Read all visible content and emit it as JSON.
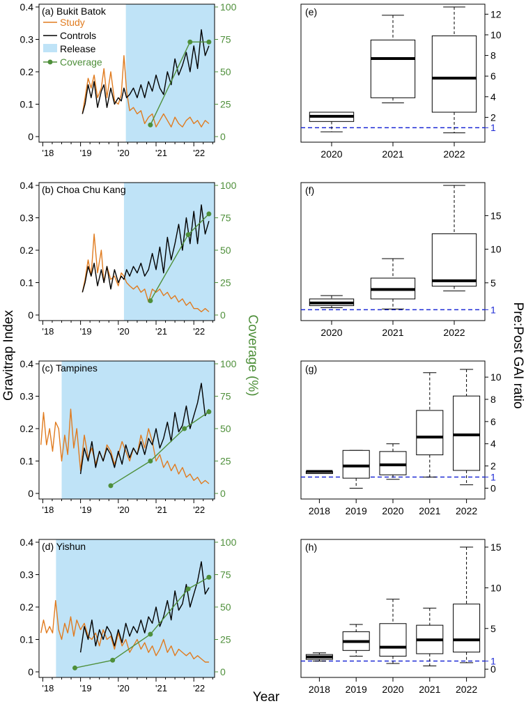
{
  "figure": {
    "y_left_label": "Gravitrap Index",
    "y_right_label": "Coverage (%)",
    "x_label": "Year",
    "box_y_label": "Pre:Post GAI ratio",
    "legend": {
      "study": "Study",
      "controls": "Controls",
      "release": "Release",
      "coverage": "Coverage"
    },
    "colors": {
      "study": "#e07b1f",
      "controls": "#000000",
      "release": "#bfe3f7",
      "coverage": "#4e8f3a",
      "ref": "#1f2bd6"
    }
  },
  "chart_data": [
    {
      "type": "line",
      "id": "a",
      "title": "(a) Bukit Batok",
      "x_ticks": [
        "'18",
        "'19",
        "'20",
        "'21",
        "'22"
      ],
      "x_tick_values": [
        2018,
        2019,
        2020,
        2021,
        2022
      ],
      "xlim": [
        2017.9,
        2022.55
      ],
      "ylim": [
        0,
        0.4
      ],
      "y_ticks": [
        "0",
        "0.1",
        "0.2",
        "0.3",
        "0.4"
      ],
      "y_tick_values": [
        0,
        0.1,
        0.2,
        0.3,
        0.4
      ],
      "y2lim": [
        0,
        100
      ],
      "y2_ticks": [
        "0",
        "25",
        "50",
        "75",
        "100"
      ],
      "y2_tick_values": [
        0,
        25,
        50,
        75,
        100
      ],
      "release_start": 2020.2,
      "study": {
        "x": [
          2019.05,
          2019.12,
          2019.2,
          2019.28,
          2019.36,
          2019.45,
          2019.55,
          2019.62,
          2019.7,
          2019.8,
          2019.9,
          2020.0,
          2020.08,
          2020.15,
          2020.22,
          2020.3,
          2020.4,
          2020.5,
          2020.6,
          2020.7,
          2020.8,
          2020.9,
          2021.0,
          2021.1,
          2021.2,
          2021.3,
          2021.4,
          2021.5,
          2021.6,
          2021.7,
          2021.8,
          2021.9,
          2022.0,
          2022.1,
          2022.2,
          2022.3,
          2022.4
        ],
        "y": [
          0.07,
          0.12,
          0.18,
          0.15,
          0.19,
          0.12,
          0.15,
          0.21,
          0.12,
          0.2,
          0.11,
          0.1,
          0.13,
          0.25,
          0.14,
          0.08,
          0.09,
          0.07,
          0.08,
          0.04,
          0.06,
          0.07,
          0.03,
          0.05,
          0.07,
          0.05,
          0.03,
          0.06,
          0.04,
          0.03,
          0.05,
          0.06,
          0.04,
          0.05,
          0.03,
          0.05,
          0.04
        ]
      },
      "controls": {
        "x": [
          2019.05,
          2019.12,
          2019.2,
          2019.28,
          2019.36,
          2019.45,
          2019.55,
          2019.62,
          2019.7,
          2019.8,
          2019.9,
          2020.0,
          2020.08,
          2020.15,
          2020.22,
          2020.3,
          2020.4,
          2020.5,
          2020.6,
          2020.7,
          2020.8,
          2020.9,
          2021.0,
          2021.1,
          2021.2,
          2021.3,
          2021.4,
          2021.5,
          2021.6,
          2021.7,
          2021.8,
          2021.9,
          2022.0,
          2022.1,
          2022.2,
          2022.3,
          2022.4
        ],
        "y": [
          0.07,
          0.1,
          0.16,
          0.12,
          0.17,
          0.09,
          0.14,
          0.16,
          0.09,
          0.15,
          0.1,
          0.12,
          0.11,
          0.15,
          0.12,
          0.13,
          0.15,
          0.12,
          0.16,
          0.12,
          0.17,
          0.14,
          0.19,
          0.15,
          0.13,
          0.2,
          0.16,
          0.24,
          0.19,
          0.22,
          0.26,
          0.2,
          0.28,
          0.21,
          0.33,
          0.25,
          0.28
        ]
      },
      "coverage": {
        "x": [
          2020.85,
          2021.9,
          2022.4
        ],
        "y": [
          9,
          73,
          73
        ]
      }
    },
    {
      "type": "line",
      "id": "b",
      "title": "(b) Choa Chu Kang",
      "x_ticks": [
        "'18",
        "'19",
        "'20",
        "'21",
        "'22"
      ],
      "x_tick_values": [
        2018,
        2019,
        2020,
        2021,
        2022
      ],
      "xlim": [
        2017.9,
        2022.55
      ],
      "ylim": [
        0,
        0.4
      ],
      "y_ticks": [
        "0",
        "0.1",
        "0.2",
        "0.3",
        "0.4"
      ],
      "y_tick_values": [
        0,
        0.1,
        0.2,
        0.3,
        0.4
      ],
      "y2lim": [
        0,
        100
      ],
      "y2_ticks": [
        "0",
        "25",
        "50",
        "75",
        "100"
      ],
      "y2_tick_values": [
        0,
        25,
        50,
        75,
        100
      ],
      "release_start": 2020.15,
      "study": {
        "x": [
          2019.05,
          2019.12,
          2019.2,
          2019.28,
          2019.36,
          2019.45,
          2019.55,
          2019.62,
          2019.7,
          2019.8,
          2019.9,
          2020.0,
          2020.08,
          2020.15,
          2020.22,
          2020.3,
          2020.4,
          2020.5,
          2020.6,
          2020.7,
          2020.8,
          2020.9,
          2021.0,
          2021.1,
          2021.2,
          2021.3,
          2021.4,
          2021.5,
          2021.6,
          2021.7,
          2021.8,
          2021.9,
          2022.0,
          2022.1,
          2022.2,
          2022.3,
          2022.4
        ],
        "y": [
          0.07,
          0.11,
          0.17,
          0.12,
          0.25,
          0.13,
          0.2,
          0.1,
          0.15,
          0.11,
          0.12,
          0.09,
          0.13,
          0.12,
          0.1,
          0.09,
          0.08,
          0.09,
          0.07,
          0.08,
          0.04,
          0.08,
          0.07,
          0.08,
          0.06,
          0.07,
          0.05,
          0.06,
          0.04,
          0.05,
          0.03,
          0.04,
          0.02,
          0.02,
          0.01,
          0.02,
          0.01
        ]
      },
      "controls": {
        "x": [
          2019.05,
          2019.12,
          2019.2,
          2019.28,
          2019.36,
          2019.45,
          2019.55,
          2019.62,
          2019.7,
          2019.8,
          2019.9,
          2020.0,
          2020.08,
          2020.15,
          2020.22,
          2020.3,
          2020.4,
          2020.5,
          2020.6,
          2020.7,
          2020.8,
          2020.9,
          2021.0,
          2021.1,
          2021.2,
          2021.3,
          2021.4,
          2021.5,
          2021.6,
          2021.7,
          2021.8,
          2021.9,
          2022.0,
          2022.1,
          2022.2,
          2022.3,
          2022.4
        ],
        "y": [
          0.07,
          0.1,
          0.15,
          0.12,
          0.16,
          0.09,
          0.14,
          0.1,
          0.15,
          0.08,
          0.14,
          0.1,
          0.12,
          0.11,
          0.14,
          0.12,
          0.15,
          0.13,
          0.16,
          0.12,
          0.14,
          0.19,
          0.14,
          0.21,
          0.13,
          0.24,
          0.17,
          0.22,
          0.28,
          0.2,
          0.3,
          0.22,
          0.32,
          0.22,
          0.34,
          0.25,
          0.29
        ]
      },
      "coverage": {
        "x": [
          2020.85,
          2021.85,
          2022.4
        ],
        "y": [
          11,
          62,
          78
        ]
      }
    },
    {
      "type": "line",
      "id": "c",
      "title": "(c) Tampines",
      "x_ticks": [
        "'18",
        "'19",
        "'20",
        "'21",
        "'22"
      ],
      "x_tick_values": [
        2018,
        2019,
        2020,
        2021,
        2022
      ],
      "xlim": [
        2017.9,
        2022.55
      ],
      "ylim": [
        0,
        0.4
      ],
      "y_ticks": [
        "0",
        "0.1",
        "0.2",
        "0.3",
        "0.4"
      ],
      "y_tick_values": [
        0,
        0.1,
        0.2,
        0.3,
        0.4
      ],
      "y2lim": [
        0,
        100
      ],
      "y2_ticks": [
        "0",
        "25",
        "50",
        "75",
        "100"
      ],
      "y2_tick_values": [
        0,
        25,
        50,
        75,
        100
      ],
      "release_start": 2018.5,
      "study": {
        "x": [
          2017.95,
          2018.02,
          2018.1,
          2018.18,
          2018.26,
          2018.34,
          2018.42,
          2018.5,
          2018.58,
          2018.66,
          2018.74,
          2018.82,
          2018.9,
          2019.0,
          2019.1,
          2019.2,
          2019.3,
          2019.4,
          2019.5,
          2019.6,
          2019.7,
          2019.8,
          2019.9,
          2020.0,
          2020.1,
          2020.2,
          2020.3,
          2020.4,
          2020.5,
          2020.6,
          2020.7,
          2020.8,
          2020.9,
          2021.0,
          2021.1,
          2021.2,
          2021.3,
          2021.4,
          2021.5,
          2021.6,
          2021.7,
          2021.8,
          2021.9,
          2022.0,
          2022.1,
          2022.2,
          2022.3,
          2022.4
        ],
        "y": [
          0.15,
          0.25,
          0.15,
          0.2,
          0.13,
          0.22,
          0.2,
          0.1,
          0.18,
          0.12,
          0.26,
          0.14,
          0.2,
          0.07,
          0.18,
          0.11,
          0.14,
          0.09,
          0.13,
          0.1,
          0.15,
          0.13,
          0.09,
          0.12,
          0.16,
          0.13,
          0.1,
          0.14,
          0.12,
          0.18,
          0.14,
          0.2,
          0.16,
          0.1,
          0.12,
          0.08,
          0.1,
          0.07,
          0.09,
          0.06,
          0.08,
          0.05,
          0.06,
          0.04,
          0.05,
          0.03,
          0.04,
          0.03
        ]
      },
      "controls": {
        "x": [
          2019.0,
          2019.1,
          2019.2,
          2019.3,
          2019.4,
          2019.5,
          2019.6,
          2019.7,
          2019.8,
          2019.9,
          2020.0,
          2020.1,
          2020.2,
          2020.3,
          2020.4,
          2020.5,
          2020.6,
          2020.7,
          2020.8,
          2020.9,
          2021.0,
          2021.1,
          2021.2,
          2021.3,
          2021.4,
          2021.5,
          2021.6,
          2021.7,
          2021.8,
          2021.9,
          2022.0,
          2022.1,
          2022.2,
          2022.3,
          2022.4
        ],
        "y": [
          0.06,
          0.14,
          0.1,
          0.16,
          0.08,
          0.13,
          0.1,
          0.14,
          0.12,
          0.08,
          0.13,
          0.09,
          0.15,
          0.11,
          0.14,
          0.12,
          0.16,
          0.12,
          0.17,
          0.15,
          0.2,
          0.14,
          0.17,
          0.22,
          0.16,
          0.25,
          0.19,
          0.21,
          0.27,
          0.2,
          0.24,
          0.28,
          0.34,
          0.24,
          0.26
        ]
      },
      "coverage": {
        "x": [
          2019.8,
          2020.85,
          2021.75,
          2022.4
        ],
        "y": [
          6,
          25,
          50,
          63
        ]
      }
    },
    {
      "type": "line",
      "id": "d",
      "title": "(d) Yishun",
      "x_ticks": [
        "'18",
        "'19",
        "'20",
        "'21",
        "'22"
      ],
      "x_tick_values": [
        2018,
        2019,
        2020,
        2021,
        2022
      ],
      "xlim": [
        2017.9,
        2022.55
      ],
      "ylim": [
        0,
        0.4
      ],
      "y_ticks": [
        "0",
        "0.1",
        "0.2",
        "0.3",
        "0.4"
      ],
      "y_tick_values": [
        0,
        0.1,
        0.2,
        0.3,
        0.4
      ],
      "y2lim": [
        0,
        100
      ],
      "y2_ticks": [
        "0",
        "25",
        "50",
        "75",
        "100"
      ],
      "y2_tick_values": [
        0,
        25,
        50,
        75,
        100
      ],
      "release_start": 2018.35,
      "study": {
        "x": [
          2017.95,
          2018.02,
          2018.1,
          2018.18,
          2018.26,
          2018.34,
          2018.42,
          2018.5,
          2018.58,
          2018.66,
          2018.74,
          2018.82,
          2018.9,
          2019.0,
          2019.1,
          2019.2,
          2019.3,
          2019.4,
          2019.5,
          2019.6,
          2019.7,
          2019.8,
          2019.9,
          2020.0,
          2020.1,
          2020.2,
          2020.3,
          2020.4,
          2020.5,
          2020.6,
          2020.7,
          2020.8,
          2020.9,
          2021.0,
          2021.1,
          2021.2,
          2021.3,
          2021.4,
          2021.5,
          2021.6,
          2021.7,
          2021.8,
          2021.9,
          2022.0,
          2022.1,
          2022.2,
          2022.3,
          2022.4
        ],
        "y": [
          0.12,
          0.16,
          0.12,
          0.14,
          0.12,
          0.22,
          0.13,
          0.1,
          0.15,
          0.12,
          0.17,
          0.11,
          0.16,
          0.13,
          0.15,
          0.11,
          0.1,
          0.12,
          0.08,
          0.13,
          0.1,
          0.11,
          0.07,
          0.12,
          0.08,
          0.1,
          0.06,
          0.08,
          0.1,
          0.07,
          0.09,
          0.06,
          0.08,
          0.05,
          0.07,
          0.1,
          0.06,
          0.08,
          0.05,
          0.07,
          0.06,
          0.05,
          0.06,
          0.04,
          0.05,
          0.04,
          0.03,
          0.03
        ]
      },
      "controls": {
        "x": [
          2019.0,
          2019.1,
          2019.2,
          2019.3,
          2019.4,
          2019.5,
          2019.6,
          2019.7,
          2019.8,
          2019.9,
          2020.0,
          2020.1,
          2020.2,
          2020.3,
          2020.4,
          2020.5,
          2020.6,
          2020.7,
          2020.8,
          2020.9,
          2021.0,
          2021.1,
          2021.2,
          2021.3,
          2021.4,
          2021.5,
          2021.6,
          2021.7,
          2021.8,
          2021.9,
          2022.0,
          2022.1,
          2022.2,
          2022.3,
          2022.4
        ],
        "y": [
          0.06,
          0.14,
          0.1,
          0.16,
          0.08,
          0.13,
          0.1,
          0.14,
          0.12,
          0.08,
          0.13,
          0.09,
          0.15,
          0.11,
          0.14,
          0.12,
          0.16,
          0.12,
          0.17,
          0.15,
          0.2,
          0.14,
          0.17,
          0.22,
          0.16,
          0.25,
          0.19,
          0.21,
          0.27,
          0.2,
          0.24,
          0.28,
          0.34,
          0.24,
          0.26
        ]
      },
      "coverage": {
        "x": [
          2018.85,
          2019.85,
          2020.85,
          2021.85,
          2022.4
        ],
        "y": [
          3,
          9,
          29,
          64,
          73
        ]
      }
    },
    {
      "type": "box",
      "id": "e",
      "title": "(e)",
      "categories": [
        "2020",
        "2021",
        "2022"
      ],
      "ylim": [
        0,
        12.7
      ],
      "y_ticks": [
        "2",
        "4",
        "6",
        "8",
        "10",
        "12"
      ],
      "y_tick_values": [
        2,
        4,
        6,
        8,
        10,
        12
      ],
      "ref_line": 1,
      "ref_label": "1",
      "boxes": [
        {
          "min": 0.6,
          "q1": 1.6,
          "median": 2.1,
          "q3": 2.5,
          "max": 2.5
        },
        {
          "min": 3.4,
          "q1": 3.9,
          "median": 7.7,
          "q3": 9.5,
          "max": 11.9
        },
        {
          "min": 0.5,
          "q1": 2.5,
          "median": 5.8,
          "q3": 9.9,
          "max": 12.7
        }
      ]
    },
    {
      "type": "box",
      "id": "f",
      "title": "(f)",
      "categories": [
        "2020",
        "2021",
        "2022"
      ],
      "ylim": [
        0,
        19.5
      ],
      "y_ticks": [
        "5",
        "10",
        "15"
      ],
      "y_tick_values": [
        5,
        10,
        15
      ],
      "ref_line": 1,
      "ref_label": "1",
      "boxes": [
        {
          "min": 1.3,
          "q1": 1.6,
          "median": 2.0,
          "q3": 2.6,
          "max": 3.1
        },
        {
          "min": 1.1,
          "q1": 2.6,
          "median": 4.0,
          "q3": 5.7,
          "max": 8.6
        },
        {
          "min": 3.8,
          "q1": 4.5,
          "median": 5.3,
          "q3": 12.3,
          "max": 19.5
        }
      ]
    },
    {
      "type": "box",
      "id": "g",
      "title": "(g)",
      "categories": [
        "2018",
        "2019",
        "2020",
        "2021",
        "2022"
      ],
      "ylim": [
        -0.6,
        11.2
      ],
      "y_ticks": [
        "0",
        "2",
        "4",
        "6",
        "8",
        "10"
      ],
      "y_tick_values": [
        0,
        2,
        4,
        6,
        8,
        10
      ],
      "ref_line": 1,
      "ref_label": "1",
      "boxes": [
        {
          "min": 1.5,
          "q1": 1.5,
          "median": 1.5,
          "q3": 1.5,
          "max": 1.5
        },
        {
          "min": 0.0,
          "q1": 0.9,
          "median": 2.0,
          "q3": 3.4,
          "max": 3.4
        },
        {
          "min": 0.8,
          "q1": 1.2,
          "median": 2.1,
          "q3": 3.3,
          "max": 4.0
        },
        {
          "min": 1.0,
          "q1": 3.0,
          "median": 4.6,
          "q3": 7.0,
          "max": 10.4
        },
        {
          "min": 0.3,
          "q1": 1.6,
          "median": 4.8,
          "q3": 8.3,
          "max": 10.7
        }
      ]
    },
    {
      "type": "box",
      "id": "h",
      "title": "(h)",
      "categories": [
        "2018",
        "2019",
        "2020",
        "2021",
        "2022"
      ],
      "ylim": [
        -0.5,
        15.6
      ],
      "y_ticks": [
        "0",
        "5",
        "10",
        "15"
      ],
      "y_tick_values": [
        0,
        5,
        10,
        15
      ],
      "ref_line": 1,
      "ref_label": "1",
      "boxes": [
        {
          "min": 1.0,
          "q1": 1.2,
          "median": 1.5,
          "q3": 1.8,
          "max": 2.0
        },
        {
          "min": 1.6,
          "q1": 2.3,
          "median": 3.4,
          "q3": 4.6,
          "max": 5.5
        },
        {
          "min": 0.7,
          "q1": 1.6,
          "median": 2.7,
          "q3": 5.6,
          "max": 8.6
        },
        {
          "min": 0.4,
          "q1": 1.9,
          "median": 3.6,
          "q3": 5.4,
          "max": 7.5
        },
        {
          "min": 0.8,
          "q1": 2.1,
          "median": 3.6,
          "q3": 8.0,
          "max": 15.0
        }
      ]
    }
  ]
}
